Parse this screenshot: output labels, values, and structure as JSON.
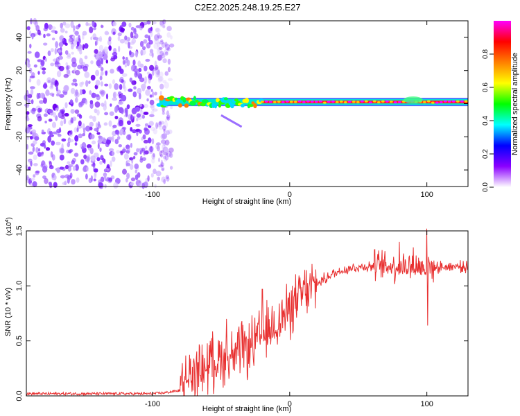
{
  "title": "C2E2.2025.248.19.25.E27",
  "chart_data": [
    {
      "type": "heatmap",
      "name": "spectrogram",
      "xlabel": "Height of straight line (km)",
      "ylabel": "Frequency (Hz)",
      "xlim": [
        -192,
        130
      ],
      "ylim": [
        -50,
        50
      ],
      "xticks": [
        -100,
        0,
        100
      ],
      "yticks": [
        -40,
        -20,
        0,
        20,
        40
      ],
      "noise_region": {
        "x_from": -192,
        "x_to": -90,
        "y_from": -50,
        "y_to": 50
      },
      "signal_band": {
        "x_from": -95,
        "x_to": 130,
        "center_hz": 1,
        "halfwidth_hz": 2
      },
      "faint_features": [
        {
          "x_from": -50,
          "x_to": -35,
          "y_from": -7,
          "y_to": -14
        }
      ],
      "colorbar": {
        "label": "Normalized spectral amplitude",
        "range": [
          0,
          1
        ],
        "ticks": [
          "0.0",
          "0.2",
          "0.4",
          "0.6",
          "0.8"
        ],
        "colors": [
          "#ffffff",
          "#8b00ff",
          "#0000ff",
          "#00ffff",
          "#00ff00",
          "#ffff00",
          "#ff8000",
          "#ff0000",
          "#ff00ff"
        ]
      }
    },
    {
      "type": "line",
      "name": "snr",
      "xlabel": "Height of straight line (km)",
      "ylabel": "SNR (10 * v/v)",
      "scale_label": "(x10",
      "scale_exp": "4",
      "xlim": [
        -192,
        130
      ],
      "ylim": [
        0,
        1.5
      ],
      "xticks": [
        -100,
        0,
        100
      ],
      "yticks": [
        "0.0",
        "0.5",
        "1.0",
        "1.5"
      ],
      "color": "#e83030",
      "series": [
        {
          "name": "SNR",
          "x": [
            -192,
            -160,
            -130,
            -100,
            -90,
            -80,
            -78,
            -70,
            -60,
            -50,
            -40,
            -35,
            -30,
            -20,
            -10,
            0,
            10,
            20,
            30,
            40,
            50,
            60,
            70,
            80,
            90,
            95,
            100,
            110,
            120,
            130
          ],
          "y": [
            0.02,
            0.02,
            0.02,
            0.02,
            0.03,
            0.05,
            0.12,
            0.2,
            0.28,
            0.35,
            0.36,
            0.4,
            0.44,
            0.54,
            0.66,
            0.78,
            0.92,
            1.02,
            1.1,
            1.15,
            1.17,
            1.18,
            1.18,
            1.18,
            1.18,
            1.17,
            1.17,
            1.17,
            1.18,
            1.17
          ]
        }
      ],
      "spikes": [
        {
          "x": -58,
          "y": 0.5
        },
        {
          "x": -46,
          "y": 0.7
        },
        {
          "x": -35,
          "y": 0.68
        },
        {
          "x": -20,
          "y": 0.97
        },
        {
          "x": 2,
          "y": 1.0
        },
        {
          "x": 10,
          "y": 1.05
        },
        {
          "x": 80,
          "y": 1.4
        },
        {
          "x": 90,
          "y": 1.35
        },
        {
          "x": 100,
          "y": 1.52
        },
        {
          "x": 100.5,
          "y": 0.64
        }
      ]
    }
  ]
}
